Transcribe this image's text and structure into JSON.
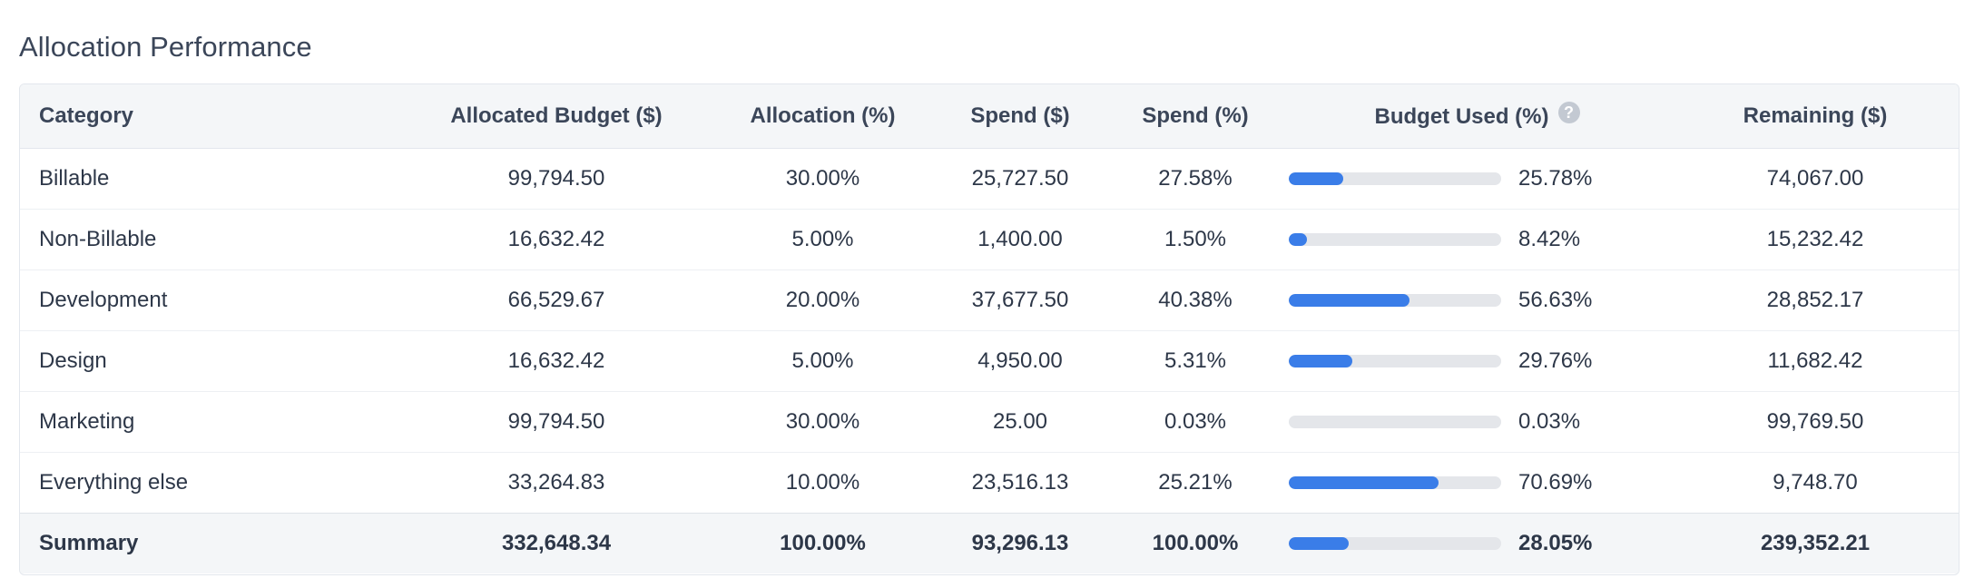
{
  "title": "Allocation Performance",
  "columns": {
    "category": "Category",
    "allocated": "Allocated Budget ($)",
    "allocation_pct": "Allocation (%)",
    "spend": "Spend ($)",
    "spend_pct": "Spend (%)",
    "budget_used": "Budget Used (%)",
    "remaining": "Remaining ($)"
  },
  "help_icon": "?",
  "accent_color": "#3a7de8",
  "rows": [
    {
      "category": "Billable",
      "allocated": "99,794.50",
      "allocation_pct": "30.00%",
      "spend": "25,727.50",
      "spend_pct": "27.58%",
      "budget_used": "25.78%",
      "budget_used_value": 25.78,
      "remaining": "74,067.00"
    },
    {
      "category": "Non-Billable",
      "allocated": "16,632.42",
      "allocation_pct": "5.00%",
      "spend": "1,400.00",
      "spend_pct": "1.50%",
      "budget_used": "8.42%",
      "budget_used_value": 8.42,
      "remaining": "15,232.42"
    },
    {
      "category": "Development",
      "allocated": "66,529.67",
      "allocation_pct": "20.00%",
      "spend": "37,677.50",
      "spend_pct": "40.38%",
      "budget_used": "56.63%",
      "budget_used_value": 56.63,
      "remaining": "28,852.17"
    },
    {
      "category": "Design",
      "allocated": "16,632.42",
      "allocation_pct": "5.00%",
      "spend": "4,950.00",
      "spend_pct": "5.31%",
      "budget_used": "29.76%",
      "budget_used_value": 29.76,
      "remaining": "11,682.42"
    },
    {
      "category": "Marketing",
      "allocated": "99,794.50",
      "allocation_pct": "30.00%",
      "spend": "25.00",
      "spend_pct": "0.03%",
      "budget_used": "0.03%",
      "budget_used_value": 0.03,
      "remaining": "99,769.50"
    },
    {
      "category": "Everything else",
      "allocated": "33,264.83",
      "allocation_pct": "10.00%",
      "spend": "23,516.13",
      "spend_pct": "25.21%",
      "budget_used": "70.69%",
      "budget_used_value": 70.69,
      "remaining": "9,748.70"
    }
  ],
  "summary": {
    "category": "Summary",
    "allocated": "332,648.34",
    "allocation_pct": "100.00%",
    "spend": "93,296.13",
    "spend_pct": "100.00%",
    "budget_used": "28.05%",
    "budget_used_value": 28.05,
    "remaining": "239,352.21"
  }
}
